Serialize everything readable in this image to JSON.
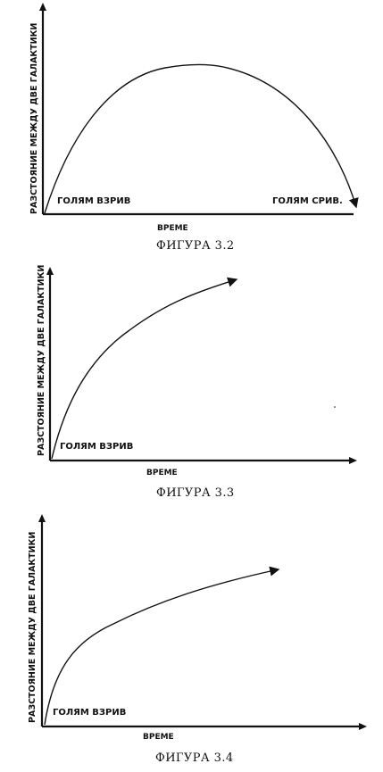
{
  "figures": [
    {
      "caption": "ФИГУРА 3.2",
      "ylabel": "РАЗСТОЯНИЕ МЕЖДУ ДВЕ ГАЛАКТИКИ",
      "xlabel": "ВРЕМЕ",
      "start_label": "ГОЛЯМ ВЗРИВ",
      "end_label": "ГОЛЯМ СРИВ."
    },
    {
      "caption": "ФИГУРА 3.3",
      "ylabel": "РАЗСТОЯНИЕ МЕЖДУ ДВЕ ГАЛАКТИКИ",
      "xlabel": "ВРЕМЕ",
      "start_label": "ГОЛЯМ ВЗРИВ"
    },
    {
      "caption": "ФИГУРА 3.4",
      "ylabel": "РАЗСТОЯНИЕ МЕЖДУ ДВЕ ГАЛАКТИКИ",
      "xlabel": "ВРЕМЕ",
      "start_label": "ГОЛЯМ ВЗРИВ"
    }
  ]
}
